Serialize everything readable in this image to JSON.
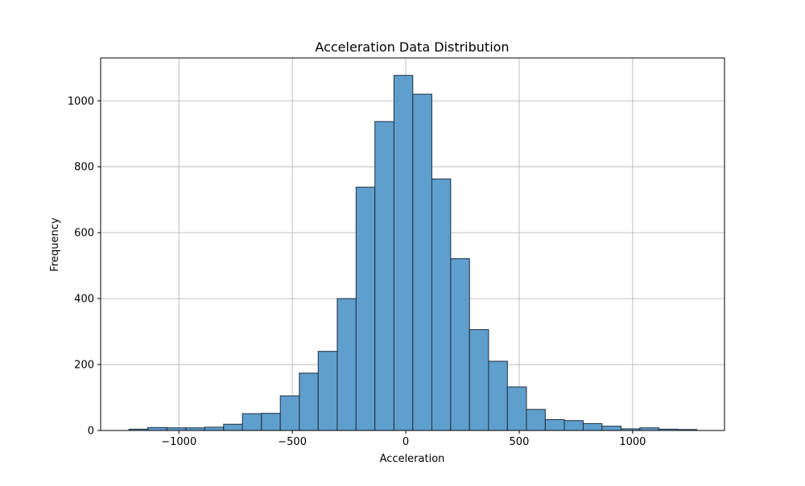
{
  "chart_data": {
    "type": "bar",
    "title": "Acceleration Data Distribution",
    "xlabel": "Acceleration",
    "ylabel": "Frequency",
    "bar_color": "#5f9fcd",
    "edge_color": "#1f2f3f",
    "grid": true,
    "xlim": [
      -1345,
      1405
    ],
    "ylim": [
      0,
      1130
    ],
    "xticks": [
      -1000,
      -500,
      0,
      500,
      1000
    ],
    "xtick_labels": [
      "−1000",
      "−500",
      "0",
      "500",
      "1000"
    ],
    "yticks": [
      0,
      200,
      400,
      600,
      800,
      1000
    ],
    "ytick_labels": [
      "0",
      "200",
      "400",
      "600",
      "800",
      "1000"
    ],
    "bin_edges": [
      -1220,
      -1137,
      -1053,
      -970,
      -886,
      -803,
      -720,
      -636,
      -553,
      -469,
      -386,
      -302,
      -219,
      -136,
      -52,
      31,
      115,
      198,
      281,
      365,
      448,
      532,
      615,
      699,
      782,
      865,
      949,
      1032,
      1116,
      1199,
      1283
    ],
    "values": [
      4,
      9,
      8,
      8,
      10,
      19,
      51,
      52,
      105,
      174,
      240,
      400,
      738,
      937,
      1077,
      1020,
      763,
      521,
      306,
      210,
      132,
      64,
      33,
      30,
      21,
      13,
      5,
      8,
      4,
      3
    ]
  }
}
